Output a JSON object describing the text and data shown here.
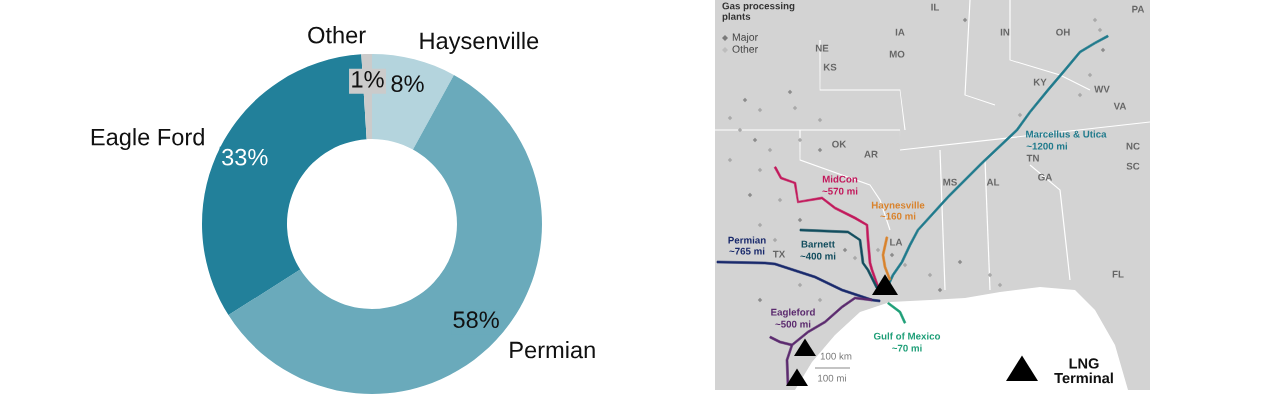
{
  "chart_data": [
    {
      "type": "donut",
      "categories": [
        "Haysenville",
        "Permian",
        "Eagle Ford",
        "Other"
      ],
      "values": [
        8,
        58,
        33,
        1
      ],
      "colors": [
        "#b4d4dd",
        "#6aaabb",
        "#22809a",
        "#cbcbcb"
      ],
      "value_labels": [
        "8%",
        "58%",
        "33%",
        "1%"
      ]
    },
    {
      "type": "other",
      "annotations": [
        "Gas processing\nplants",
        "Major",
        "Other",
        "IL",
        "IA",
        "IN",
        "OH",
        "PA",
        "NE",
        "KS",
        "MO",
        "KY",
        "WV",
        "VA",
        "OK",
        "AR",
        "NC",
        "TN",
        "SC",
        "MS",
        "AL",
        "GA",
        "LA",
        "TX",
        "FL",
        "Marcellus & Utica",
        "~1200 mi",
        "MidCon",
        "~570 mi",
        "Haynesville",
        "~160 mi",
        "Permian",
        "~765 mi",
        "Barnett",
        "~400 mi",
        "Eagleford",
        "~500 mi",
        "Gulf of Mexico",
        "~70 mi",
        "100 km",
        "100 mi",
        "LNG\nTerminal"
      ]
    }
  ]
}
